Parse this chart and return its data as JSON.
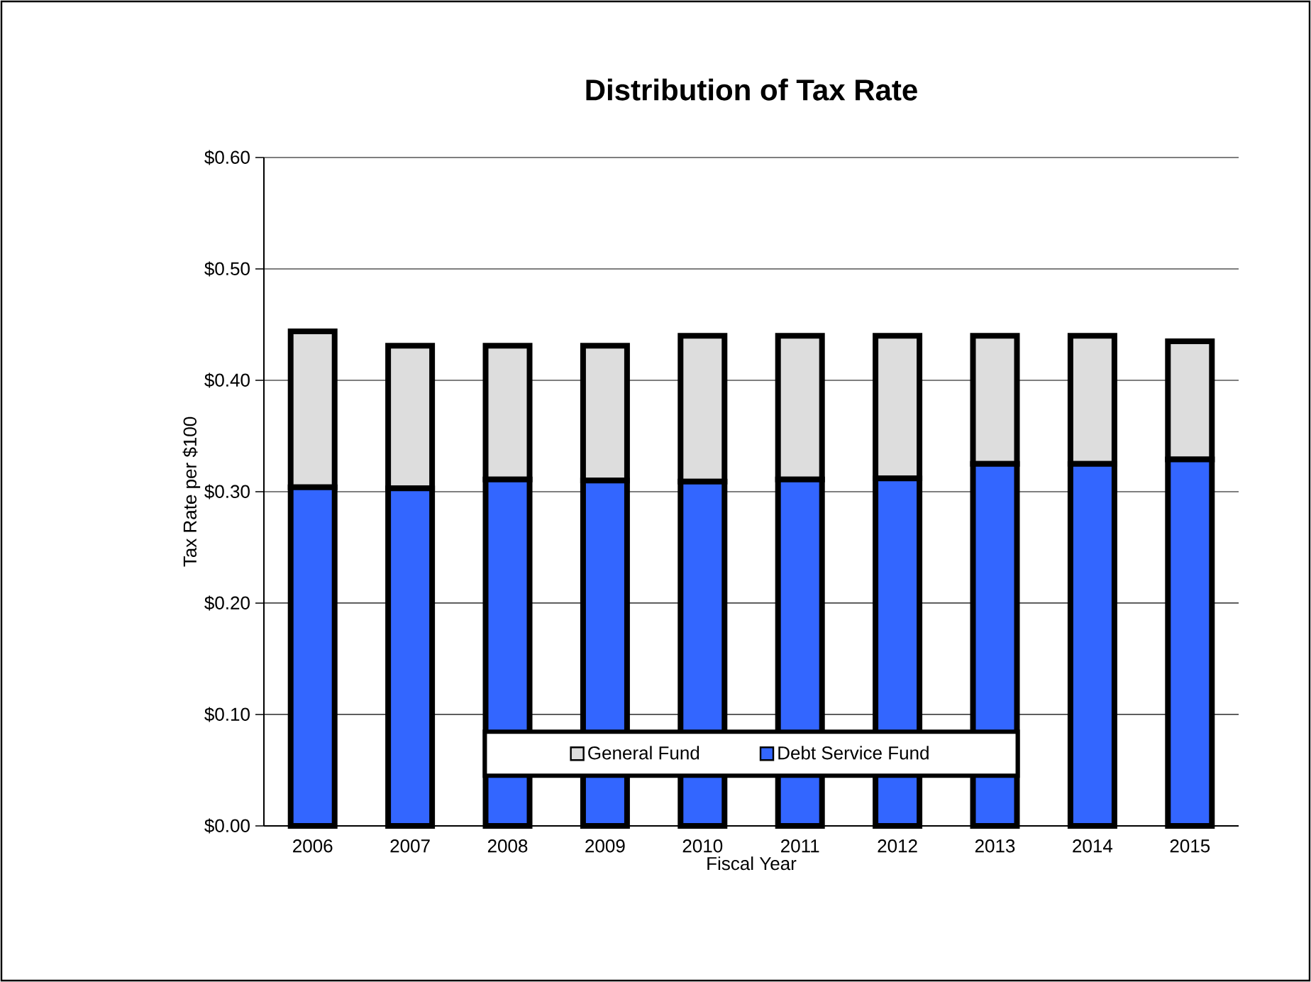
{
  "chart_data": {
    "type": "bar",
    "title": "Distribution of Tax Rate",
    "xlabel": "Fiscal Year",
    "ylabel": "Tax Rate per $100",
    "categories": [
      "2006",
      "2007",
      "2008",
      "2009",
      "2010",
      "2011",
      "2012",
      "2013",
      "2014",
      "2015"
    ],
    "stacked": true,
    "series": [
      {
        "name": "Debt Service Fund",
        "color": "#3366ff",
        "values": [
          0.304,
          0.303,
          0.311,
          0.31,
          0.309,
          0.311,
          0.312,
          0.325,
          0.325,
          0.329
        ]
      },
      {
        "name": "General Fund",
        "color": "#dddddd",
        "values": [
          0.14,
          0.128,
          0.12,
          0.121,
          0.131,
          0.129,
          0.128,
          0.115,
          0.115,
          0.106
        ]
      }
    ],
    "ylim": [
      0,
      0.6
    ],
    "yticks": [
      {
        "value": 0,
        "label": "$0.00"
      },
      {
        "value": 0.1,
        "label": "$0.10"
      },
      {
        "value": 0.2,
        "label": "$0.20"
      },
      {
        "value": 0.3,
        "label": "$0.30"
      },
      {
        "value": 0.4,
        "label": "$0.40"
      },
      {
        "value": 0.5,
        "label": "$0.50"
      },
      {
        "value": 0.6,
        "label": "$0.60"
      }
    ],
    "grid": "y",
    "legend": "bottom"
  }
}
